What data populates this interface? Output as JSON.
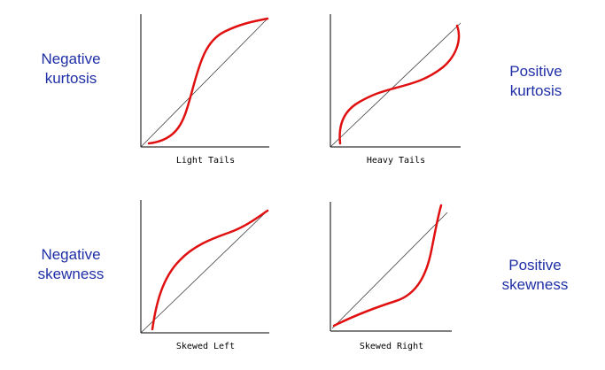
{
  "labels": {
    "top_left": [
      "Negative",
      "kurtosis"
    ],
    "top_right": [
      "Positive",
      "kurtosis"
    ],
    "bottom_left": [
      "Negative",
      "skewness"
    ],
    "bottom_right": [
      "Positive",
      "skewness"
    ]
  },
  "plots": {
    "light_tails": {
      "caption": "Light Tails"
    },
    "heavy_tails": {
      "caption": "Heavy Tails"
    },
    "skewed_left": {
      "caption": "Skewed Left"
    },
    "skewed_right": {
      "caption": "Skewed Right"
    }
  },
  "colors": {
    "label_text": "#1f2fa6",
    "curve": "#e01010",
    "axis": "#000000",
    "reference_line": "#404040"
  }
}
